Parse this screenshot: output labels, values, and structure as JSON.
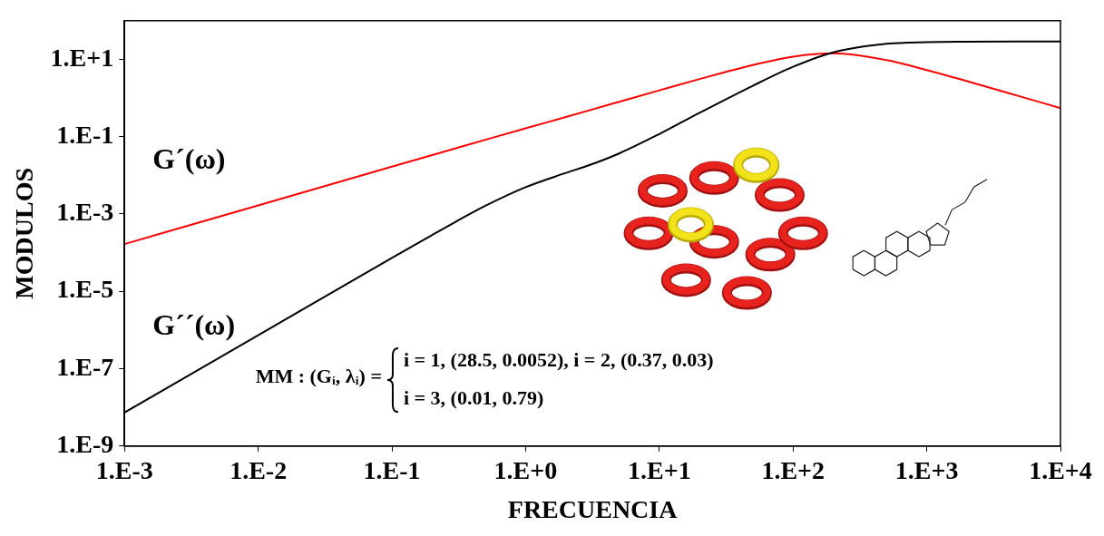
{
  "chart_data": {
    "type": "line",
    "x_label": "FRECUENCIA",
    "y_label": "MODULOS",
    "log": true,
    "grid": false,
    "x": [
      0.001,
      0.01,
      0.1,
      0.2,
      0.3,
      0.5,
      1,
      2,
      3,
      5,
      10,
      20,
      50,
      100,
      200,
      500,
      1000,
      2000,
      5000,
      10000
    ],
    "series": [
      {
        "color": "#000000",
        "values": [
          7.34e-09,
          7.34e-07,
          7.31e-05,
          0.0002876,
          0.000631,
          0.00163,
          0.00495,
          0.01155,
          0.01839,
          0.0368,
          0.1171,
          0.413,
          2.071,
          6.409,
          15.18,
          25.21,
          27.86,
          28.62,
          28.84,
          28.87
        ]
      },
      {
        "color": "#ff0000",
        "values": [
          0.000167,
          0.001672,
          0.01672,
          0.0334,
          0.05,
          0.0831,
          0.1642,
          0.323,
          0.4812,
          0.797,
          1.581,
          3.096,
          7.112,
          11.78,
          14.3,
          9.57,
          5.3,
          2.72,
          1.097,
          0.549
        ]
      }
    ],
    "xlim": [
      0.001,
      10000
    ],
    "xticks": [
      {
        "value": 0.001,
        "label": "1.E-3"
      },
      {
        "value": 0.01,
        "label": "1.E-2"
      },
      {
        "value": 0.1,
        "label": "1.E-1"
      },
      {
        "value": 1,
        "label": "1.E+0"
      },
      {
        "value": 10,
        "label": "1.E+1"
      },
      {
        "value": 100,
        "label": "1.E+2"
      },
      {
        "value": 1000,
        "label": "1.E+3"
      },
      {
        "value": 10000,
        "label": "1.E+4"
      }
    ],
    "ylim": [
      1e-09,
      100
    ],
    "yticks": [
      {
        "value": 1e-09,
        "label": "1.E-9"
      },
      {
        "value": 1e-07,
        "label": "1.E-7"
      },
      {
        "value": 1e-05,
        "label": "1.E-5"
      },
      {
        "value": 0.001,
        "label": "1.E-3"
      },
      {
        "value": 0.1,
        "label": "1.E-1"
      },
      {
        "value": 10,
        "label": "1.E+1"
      }
    ],
    "annotations": [
      "G´(ω)",
      "G´´(ω)"
    ],
    "model": {
      "label": "MM : (Gᵢ, λᵢ) =",
      "lines": [
        "i = 1, (28.5, 0.0052), i = 2, (0.37, 0.03)",
        "i = 3, (0.01, 0.79)"
      ]
    }
  }
}
